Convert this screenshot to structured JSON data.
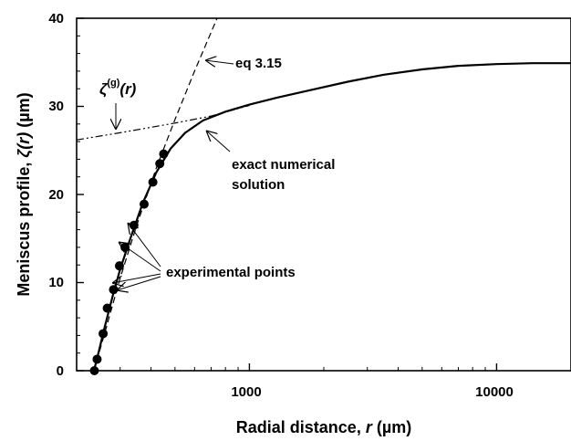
{
  "chart_data": {
    "type": "line",
    "x_scale": "log",
    "xlim": [
      200,
      20000
    ],
    "ylim": [
      0,
      40
    ],
    "grid": false,
    "xlabel": {
      "prefix": "Radial distance, ",
      "var": "r",
      "unit": " (µm)"
    },
    "ylabel": {
      "prefix": "Meniscus profile, ",
      "var": "ζ(r)",
      "unit": " (µm)"
    },
    "x_tick_labels": [
      "1000",
      "10000"
    ],
    "x_ticks": [
      1000,
      10000
    ],
    "y_ticks": [
      0,
      10,
      20,
      30,
      40
    ],
    "y_tick_labels": [
      "0",
      "10",
      "20",
      "30",
      "40"
    ],
    "series": [
      {
        "style": "solid",
        "x": [
          235,
          245,
          260,
          280,
          300,
          330,
          370,
          420,
          480,
          550,
          650,
          800,
          1000,
          1300,
          1800,
          2500,
          3500,
          5000,
          7000,
          10000,
          14000,
          20000
        ],
        "y": [
          0,
          2,
          5,
          8.5,
          11.5,
          15,
          19,
          22.5,
          25.2,
          27,
          28.4,
          29.4,
          30.2,
          31,
          31.9,
          32.8,
          33.6,
          34.2,
          34.6,
          34.8,
          34.9,
          34.9
        ]
      },
      {
        "style": "dashed",
        "x": [
          235,
          260,
          300,
          350,
          420,
          500,
          600,
          740
        ],
        "y": [
          0,
          4.3,
          10.5,
          16.5,
          23,
          28.5,
          34,
          40
        ]
      },
      {
        "style": "dash-dot",
        "x": [
          200,
          300,
          500,
          700,
          1000
        ],
        "y": [
          26.2,
          27,
          28.1,
          28.9,
          30.1
        ]
      },
      {
        "style": "markers",
        "x": [
          236,
          242,
          256,
          266,
          282,
          298,
          314,
          341,
          375,
          407,
          434,
          450
        ],
        "y": [
          0,
          1.3,
          4.2,
          7.1,
          9.2,
          11.9,
          14,
          16.5,
          18.9,
          21.4,
          23.5,
          24.6
        ]
      }
    ],
    "annotations": [
      {
        "text": "eq 3.15",
        "x": 805,
        "y": 35.2
      },
      {
        "text": "exact numerical",
        "x": 1080,
        "y": 22.5
      },
      {
        "text": "solution",
        "x": 1080,
        "y": 20.2
      },
      {
        "text": "experimental points",
        "x": 465,
        "y": 10.7
      }
    ],
    "zeta_label": {
      "symbol": "ζ",
      "superscript": "(g)",
      "var": "(r)"
    }
  }
}
